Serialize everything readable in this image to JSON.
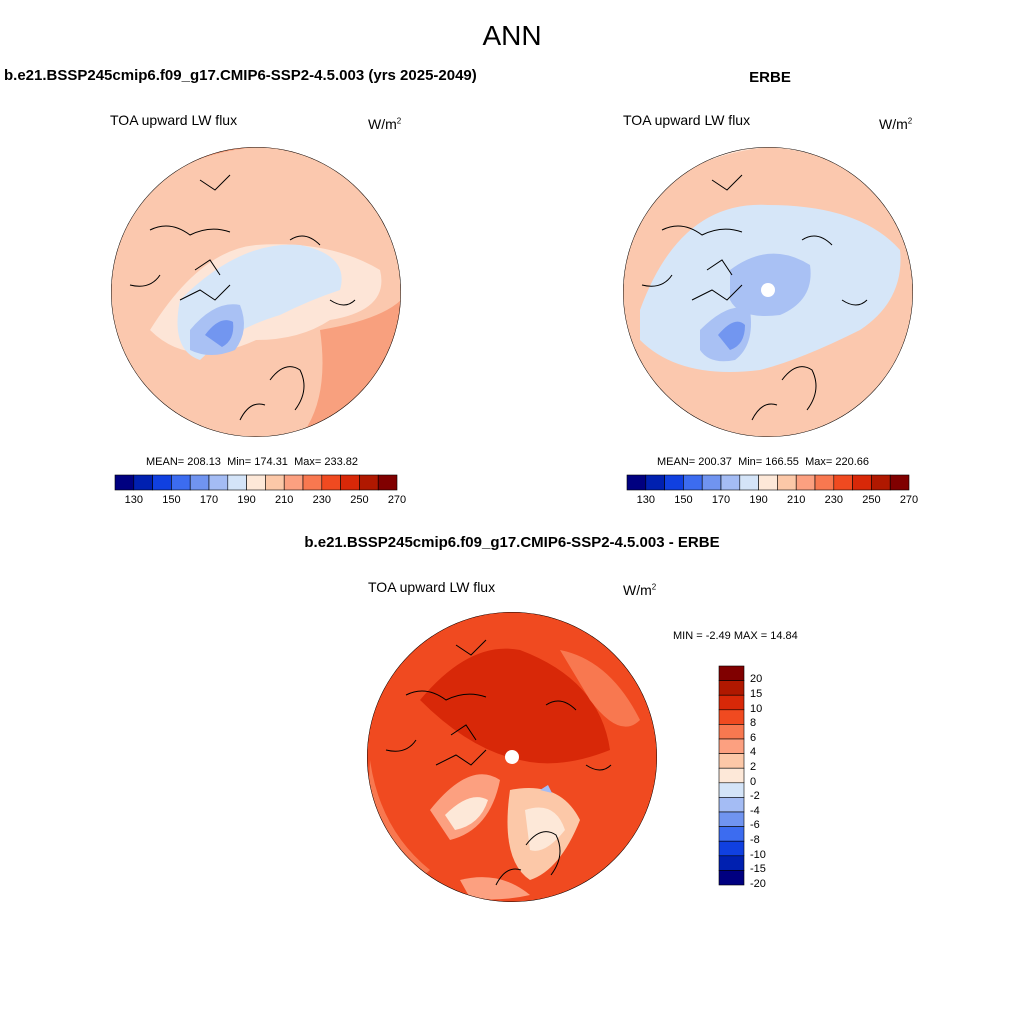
{
  "page_title": "ANN",
  "panel_left": {
    "title": "b.e21.BSSP245cmip6.f09_g17.CMIP6-SSP2-4.5.003 (yrs 2025-2049)",
    "variable": "TOA upward LW flux",
    "units": "W/m",
    "units_exp": "2",
    "mean_label": "MEAN=",
    "mean_value": "208.13",
    "min_label": "Min=",
    "min_value": "174.31",
    "max_label": "Max=",
    "max_value": "233.82"
  },
  "panel_right": {
    "title": "ERBE",
    "variable": "TOA upward LW flux",
    "units": "W/m",
    "units_exp": "2",
    "mean_label": "MEAN=",
    "mean_value": "200.37",
    "min_label": "Min=",
    "min_value": "166.55",
    "max_label": "Max=",
    "max_value": "220.66"
  },
  "panel_diff": {
    "title": "b.e21.BSSP245cmip6.f09_g17.CMIP6-SSP2-4.5.003 - ERBE",
    "variable": "TOA upward LW flux",
    "units": "W/m",
    "units_exp": "2",
    "min_label": "MIN =",
    "min_value": "-2.49",
    "max_label": "MAX =",
    "max_value": "14.84"
  },
  "abs_colorbar": {
    "colors": [
      "#000080",
      "#0020b0",
      "#1040e0",
      "#3c6cf0",
      "#7094f0",
      "#a4bcf4",
      "#d4e4f8",
      "#fde8d8",
      "#fcc8a8",
      "#fca080",
      "#f87850",
      "#f04a20",
      "#d82808",
      "#b01800",
      "#800000"
    ],
    "tick_labels": [
      "130",
      "150",
      "170",
      "190",
      "210",
      "230",
      "250",
      "270"
    ]
  },
  "diff_colorbar": {
    "colors": [
      "#800000",
      "#b01800",
      "#d82808",
      "#f04a20",
      "#f87850",
      "#fca080",
      "#fcc8a8",
      "#fde8d8",
      "#d4e4f8",
      "#a4bcf4",
      "#7094f0",
      "#3c6cf0",
      "#1040e0",
      "#0020b0",
      "#000080"
    ],
    "tick_labels": [
      "20",
      "15",
      "10",
      "8",
      "6",
      "4",
      "2",
      "0",
      "-2",
      "-4",
      "-6",
      "-8",
      "-10",
      "-15",
      "-20"
    ]
  }
}
